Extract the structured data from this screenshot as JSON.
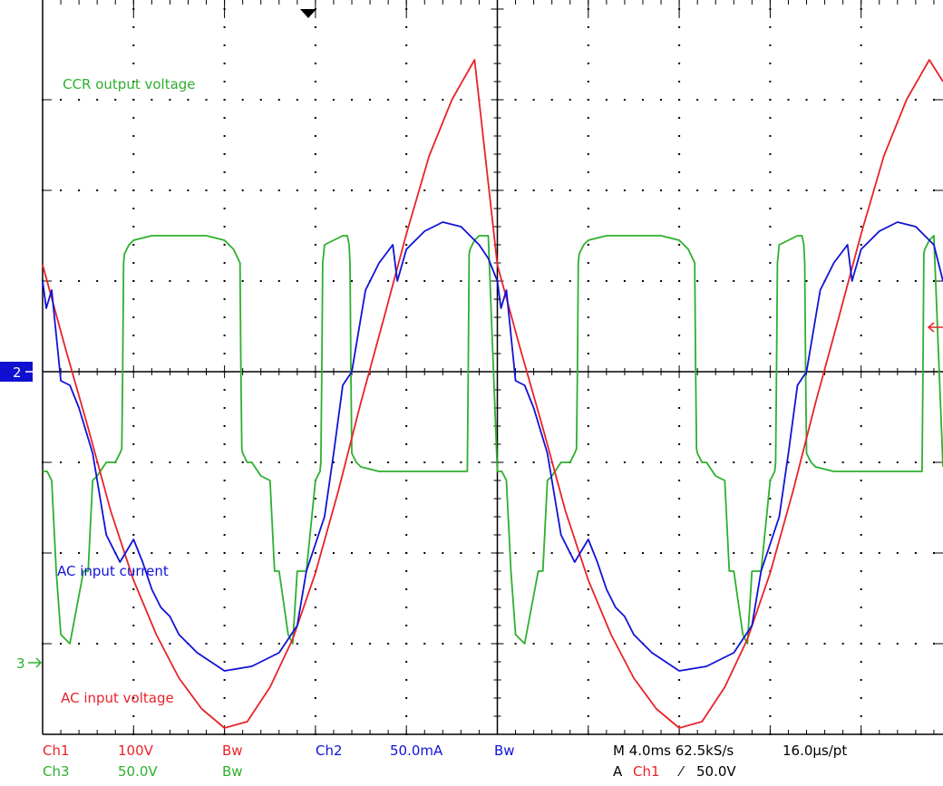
{
  "chart_data": {
    "type": "line",
    "title": "",
    "xlabel": "",
    "ylabel": "",
    "xlim": [
      0,
      10
    ],
    "ylim": [
      -4,
      4
    ],
    "grid": true,
    "grid_divisions": {
      "x": 10,
      "y": 8
    },
    "series": [
      {
        "name": "AC input voltage",
        "color": "#e8232a",
        "x": [
          0.0,
          0.25,
          0.5,
          0.75,
          1.0,
          1.25,
          1.5,
          1.75,
          2.0,
          2.25,
          2.5,
          2.75,
          3.0,
          3.25,
          3.5,
          3.75,
          4.0,
          4.25,
          4.5,
          4.75,
          5.0,
          5.25,
          5.5,
          5.75,
          6.0,
          6.25,
          6.5,
          6.75,
          7.0,
          7.25,
          7.5,
          7.75,
          8.0,
          8.25,
          8.5,
          8.75,
          9.0,
          9.25,
          9.5,
          9.75,
          9.9
        ],
        "y": [
          1.18,
          0.26,
          -0.62,
          -1.54,
          -2.3,
          -2.9,
          -3.38,
          -3.72,
          -3.93,
          -3.86,
          -3.48,
          -2.95,
          -2.22,
          -1.32,
          -0.34,
          0.58,
          1.52,
          2.38,
          3.0,
          3.44,
          1.18,
          0.26,
          -0.62,
          -1.54,
          -2.3,
          -2.9,
          -3.38,
          -3.72,
          -3.93,
          -3.86,
          -3.48,
          -2.95,
          -2.22,
          -1.32,
          -0.34,
          0.58,
          1.52,
          2.38,
          3.0,
          3.44,
          3.2
        ]
      },
      {
        "name": "AC input current",
        "color": "#1212d6",
        "x": [
          0.0,
          0.04,
          0.1,
          0.2,
          0.3,
          0.4,
          0.55,
          0.7,
          0.85,
          1.0,
          1.1,
          1.2,
          1.3,
          1.4,
          1.5,
          1.7,
          2.0,
          2.3,
          2.6,
          2.8,
          2.9,
          3.0,
          3.1,
          3.2,
          3.3,
          3.4,
          3.55,
          3.7,
          3.85,
          3.9,
          4.0,
          4.2,
          4.4,
          4.6,
          4.8,
          4.9,
          5.0,
          5.04,
          5.1,
          5.2,
          5.3,
          5.4,
          5.55,
          5.7,
          5.85,
          6.0,
          6.1,
          6.2,
          6.3,
          6.4,
          6.5,
          6.7,
          7.0,
          7.3,
          7.6,
          7.8,
          7.9,
          8.0,
          8.1,
          8.2,
          8.3,
          8.4,
          8.55,
          8.7,
          8.85,
          8.9,
          9.0,
          9.2,
          9.4,
          9.6,
          9.8,
          9.9
        ],
        "y": [
          1.0,
          0.7,
          0.9,
          -0.1,
          -0.15,
          -0.4,
          -0.9,
          -1.8,
          -2.1,
          -1.85,
          -2.1,
          -2.4,
          -2.6,
          -2.7,
          -2.9,
          -3.1,
          -3.3,
          -3.25,
          -3.1,
          -2.8,
          -2.2,
          -1.9,
          -1.6,
          -0.9,
          -0.15,
          0.0,
          0.9,
          1.2,
          1.4,
          1.0,
          1.35,
          1.55,
          1.65,
          1.6,
          1.4,
          1.25,
          1.0,
          0.7,
          0.9,
          -0.1,
          -0.15,
          -0.4,
          -0.9,
          -1.8,
          -2.1,
          -1.85,
          -2.1,
          -2.4,
          -2.6,
          -2.7,
          -2.9,
          -3.1,
          -3.3,
          -3.25,
          -3.1,
          -2.8,
          -2.2,
          -1.9,
          -1.6,
          -0.9,
          -0.15,
          0.0,
          0.9,
          1.2,
          1.4,
          1.0,
          1.35,
          1.55,
          1.65,
          1.6,
          1.4,
          1.0
        ]
      },
      {
        "name": "CCR output voltage",
        "color": "#2db02d",
        "x": [
          0.0,
          0.05,
          0.1,
          0.15,
          0.2,
          0.3,
          0.45,
          0.5,
          0.55,
          0.6,
          0.7,
          0.8,
          0.85,
          0.87,
          0.88,
          0.89,
          0.9,
          0.95,
          1.0,
          1.2,
          1.5,
          1.8,
          2.0,
          2.1,
          2.17,
          2.18,
          2.19,
          2.2,
          2.25,
          2.3,
          2.4,
          2.5,
          2.55,
          2.6,
          2.7,
          2.75,
          2.8,
          2.9,
          3.0,
          3.05,
          3.06,
          3.07,
          3.08,
          3.09,
          3.1,
          3.2,
          3.3,
          3.35,
          3.37,
          3.38,
          3.39,
          3.4,
          3.45,
          3.5,
          3.7,
          4.0,
          4.3,
          4.5,
          4.6,
          4.67,
          4.68,
          4.69,
          4.7,
          4.75,
          4.8,
          4.9,
          5.0,
          5.05,
          5.1,
          5.15,
          5.2,
          5.3,
          5.45,
          5.5,
          5.55,
          5.6,
          5.7,
          5.8,
          5.85,
          5.87,
          5.88,
          5.89,
          5.9,
          5.95,
          6.0,
          6.2,
          6.5,
          6.8,
          7.0,
          7.1,
          7.17,
          7.18,
          7.19,
          7.2,
          7.25,
          7.3,
          7.4,
          7.5,
          7.55,
          7.6,
          7.7,
          7.75,
          7.8,
          7.9,
          8.0,
          8.05,
          8.06,
          8.07,
          8.08,
          8.09,
          8.1,
          8.2,
          8.3,
          8.35,
          8.37,
          8.38,
          8.39,
          8.4,
          8.45,
          8.5,
          8.7,
          9.0,
          9.3,
          9.5,
          9.6,
          9.67,
          9.68,
          9.69,
          9.7,
          9.75,
          9.8,
          9.9
        ],
        "y": [
          -1.1,
          -1.1,
          -1.2,
          -2.2,
          -2.9,
          -3.0,
          -2.2,
          -2.2,
          -1.2,
          -1.15,
          -1.0,
          -1.0,
          -0.9,
          -0.85,
          0.0,
          1.2,
          1.3,
          1.4,
          1.45,
          1.5,
          1.5,
          1.5,
          1.45,
          1.35,
          1.2,
          0.0,
          -0.85,
          -0.9,
          -1.0,
          -1.0,
          -1.15,
          -1.2,
          -2.2,
          -2.2,
          -2.9,
          -3.0,
          -2.2,
          -2.2,
          -1.2,
          -1.1,
          -1.0,
          0.0,
          1.2,
          1.3,
          1.4,
          1.45,
          1.5,
          1.5,
          1.4,
          1.2,
          0.0,
          -0.9,
          -1.0,
          -1.05,
          -1.1,
          -1.1,
          -1.1,
          -1.1,
          -1.1,
          -1.1,
          0.0,
          1.3,
          1.35,
          1.45,
          1.5,
          1.5,
          -1.1,
          -1.1,
          -1.2,
          -2.2,
          -2.9,
          -3.0,
          -2.2,
          -2.2,
          -1.2,
          -1.15,
          -1.0,
          -1.0,
          -0.9,
          -0.85,
          0.0,
          1.2,
          1.3,
          1.4,
          1.45,
          1.5,
          1.5,
          1.5,
          1.45,
          1.35,
          1.2,
          0.0,
          -0.85,
          -0.9,
          -1.0,
          -1.0,
          -1.15,
          -1.2,
          -2.2,
          -2.2,
          -2.9,
          -3.0,
          -2.2,
          -2.2,
          -1.2,
          -1.1,
          -1.0,
          0.0,
          1.2,
          1.3,
          1.4,
          1.45,
          1.5,
          1.5,
          1.4,
          1.2,
          0.0,
          -0.9,
          -1.0,
          -1.05,
          -1.1,
          -1.1,
          -1.1,
          -1.1,
          -1.1,
          -1.1,
          0.0,
          1.3,
          1.35,
          1.45,
          1.5,
          -1.05
        ]
      }
    ],
    "annotations": [
      {
        "text": "CCR output voltage",
        "x": 0.22,
        "y": 3.12,
        "color": "#2db02d"
      },
      {
        "text": "AC input current",
        "x": 0.16,
        "y": -2.25,
        "color": "#1212d6"
      },
      {
        "text": "AC input voltage",
        "x": 0.2,
        "y": -3.65,
        "color": "#e8232a"
      }
    ],
    "markers": {
      "ch2_ground": {
        "label": "2",
        "y": 0.0,
        "color": "#1010d0"
      },
      "ch3_ground": {
        "label": "3",
        "y": -3.0,
        "color": "#2db02d"
      },
      "trigger_position_x": 3.0,
      "ch1_trigger_level_y": 0.5
    }
  },
  "status_bar": {
    "row1": {
      "ch1": "Ch1",
      "ch1_scale": "100V",
      "ch1_bw": "Bw",
      "ch2": "Ch2",
      "ch2_scale": "50.0mA",
      "ch2_bw": "Bw",
      "timebase": "M 4.0ms 62.5kS/s",
      "resolution": "16.0µs/pt"
    },
    "row2": {
      "ch3": "Ch3",
      "ch3_scale": "50.0V",
      "ch3_bw": "Bw",
      "trigger_prefix": "A",
      "trigger_channel": "Ch1",
      "trigger_slope": "⁄",
      "trigger_level": "50.0V"
    }
  },
  "colors": {
    "ch1": "#e8232a",
    "ch2": "#1212d6",
    "ch3": "#2db02d",
    "axis": "#000000"
  }
}
